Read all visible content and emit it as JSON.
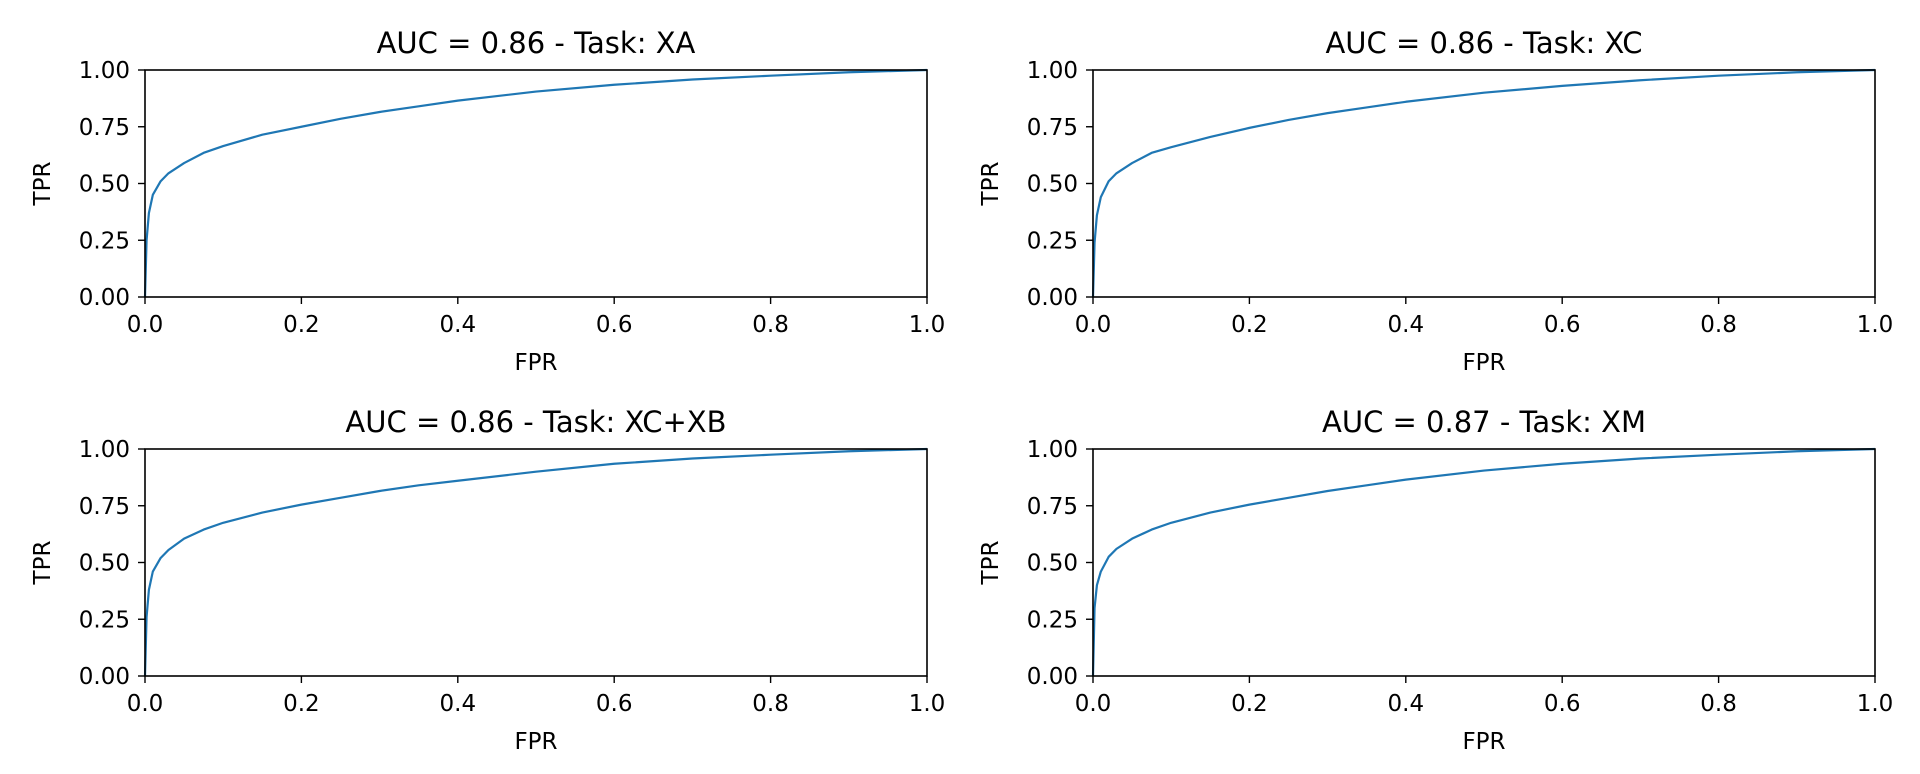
{
  "figure": {
    "background": "#ffffff",
    "line_color": "#1f77b4"
  },
  "chart_data": [
    {
      "type": "line",
      "title": "AUC = 0.86 - Task: XA",
      "xlabel": "FPR",
      "ylabel": "TPR",
      "xlim": [
        0.0,
        1.0
      ],
      "ylim": [
        0.0,
        1.0
      ],
      "xticks": [
        "0.0",
        "0.2",
        "0.4",
        "0.6",
        "0.8",
        "1.0"
      ],
      "yticks": [
        "0.00",
        "0.25",
        "0.50",
        "0.75",
        "1.00"
      ],
      "grid": false,
      "series": [
        {
          "x": [
            0.0,
            0.002,
            0.005,
            0.01,
            0.02,
            0.03,
            0.05,
            0.075,
            0.1,
            0.15,
            0.2,
            0.25,
            0.3,
            0.35,
            0.4,
            0.5,
            0.6,
            0.7,
            0.8,
            0.9,
            1.0
          ],
          "y": [
            0.0,
            0.25,
            0.37,
            0.45,
            0.51,
            0.545,
            0.59,
            0.635,
            0.665,
            0.715,
            0.75,
            0.785,
            0.815,
            0.84,
            0.865,
            0.905,
            0.935,
            0.958,
            0.975,
            0.99,
            1.0
          ]
        }
      ]
    },
    {
      "type": "line",
      "title": "AUC = 0.86 - Task: XC",
      "xlabel": "FPR",
      "ylabel": "TPR",
      "xlim": [
        0.0,
        1.0
      ],
      "ylim": [
        0.0,
        1.0
      ],
      "xticks": [
        "0.0",
        "0.2",
        "0.4",
        "0.6",
        "0.8",
        "1.0"
      ],
      "yticks": [
        "0.00",
        "0.25",
        "0.50",
        "0.75",
        "1.00"
      ],
      "grid": false,
      "series": [
        {
          "x": [
            0.0,
            0.002,
            0.005,
            0.01,
            0.02,
            0.03,
            0.05,
            0.075,
            0.1,
            0.15,
            0.2,
            0.25,
            0.3,
            0.35,
            0.4,
            0.5,
            0.6,
            0.7,
            0.8,
            0.9,
            1.0
          ],
          "y": [
            0.0,
            0.24,
            0.36,
            0.44,
            0.51,
            0.545,
            0.59,
            0.635,
            0.66,
            0.705,
            0.745,
            0.78,
            0.81,
            0.835,
            0.86,
            0.9,
            0.93,
            0.955,
            0.975,
            0.99,
            1.0
          ]
        }
      ]
    },
    {
      "type": "line",
      "title": "AUC = 0.86 - Task: XC+XB",
      "xlabel": "FPR",
      "ylabel": "TPR",
      "xlim": [
        0.0,
        1.0
      ],
      "ylim": [
        0.0,
        1.0
      ],
      "xticks": [
        "0.0",
        "0.2",
        "0.4",
        "0.6",
        "0.8",
        "1.0"
      ],
      "yticks": [
        "0.00",
        "0.25",
        "0.50",
        "0.75",
        "1.00"
      ],
      "grid": false,
      "series": [
        {
          "x": [
            0.0,
            0.002,
            0.005,
            0.01,
            0.02,
            0.03,
            0.05,
            0.075,
            0.1,
            0.15,
            0.2,
            0.25,
            0.3,
            0.35,
            0.4,
            0.5,
            0.6,
            0.7,
            0.8,
            0.9,
            1.0
          ],
          "y": [
            0.0,
            0.26,
            0.38,
            0.46,
            0.52,
            0.555,
            0.605,
            0.645,
            0.675,
            0.72,
            0.755,
            0.785,
            0.815,
            0.84,
            0.86,
            0.9,
            0.935,
            0.958,
            0.975,
            0.99,
            1.0
          ]
        }
      ]
    },
    {
      "type": "line",
      "title": "AUC = 0.87 - Task: XM",
      "xlabel": "FPR",
      "ylabel": "TPR",
      "xlim": [
        0.0,
        1.0
      ],
      "ylim": [
        0.0,
        1.0
      ],
      "xticks": [
        "0.0",
        "0.2",
        "0.4",
        "0.6",
        "0.8",
        "1.0"
      ],
      "yticks": [
        "0.00",
        "0.25",
        "0.50",
        "0.75",
        "1.00"
      ],
      "grid": false,
      "series": [
        {
          "x": [
            0.0,
            0.002,
            0.005,
            0.01,
            0.02,
            0.03,
            0.05,
            0.075,
            0.1,
            0.15,
            0.2,
            0.25,
            0.3,
            0.35,
            0.4,
            0.5,
            0.6,
            0.7,
            0.8,
            0.9,
            1.0
          ],
          "y": [
            0.0,
            0.3,
            0.4,
            0.46,
            0.525,
            0.56,
            0.605,
            0.645,
            0.675,
            0.72,
            0.755,
            0.785,
            0.815,
            0.84,
            0.865,
            0.905,
            0.935,
            0.958,
            0.975,
            0.99,
            1.0
          ]
        }
      ]
    }
  ]
}
